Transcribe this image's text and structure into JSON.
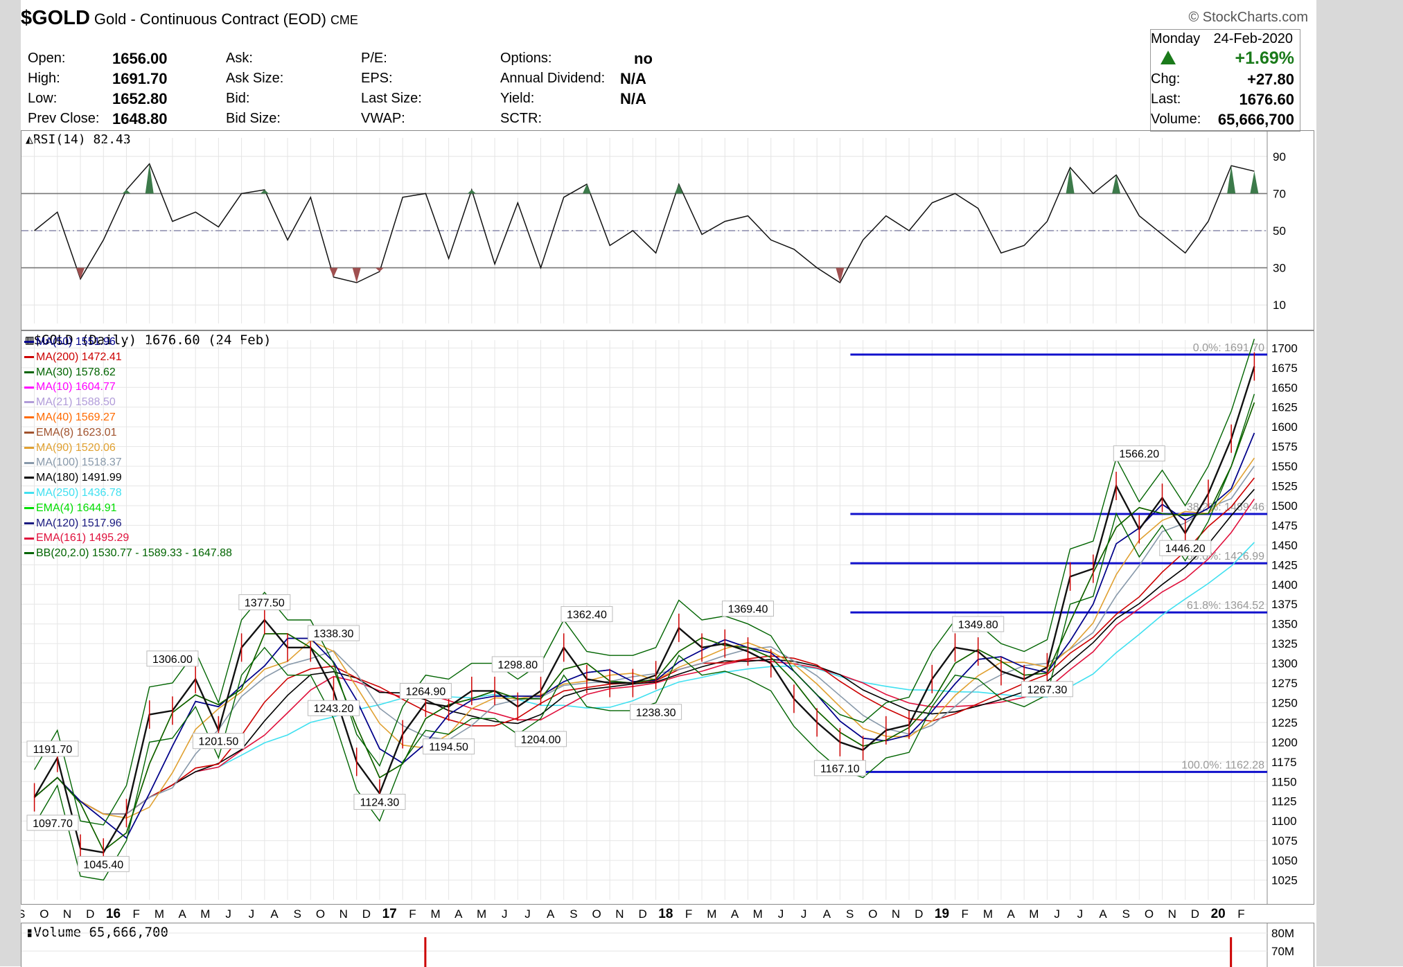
{
  "header": {
    "symbol": "$GOLD",
    "description": "Gold - Continuous Contract (EOD)",
    "exchange": "CME",
    "brand": "© StockCharts.com"
  },
  "quote": {
    "open_label": "Open:",
    "open": "1656.00",
    "high_label": "High:",
    "high": "1691.70",
    "low_label": "Low:",
    "low": "1652.80",
    "prev_close_label": "Prev Close:",
    "prev_close": "1648.80",
    "ask_label": "Ask:",
    "ask_size_label": "Ask Size:",
    "bid_label": "Bid:",
    "bid_size_label": "Bid Size:",
    "pe_label": "P/E:",
    "eps_label": "EPS:",
    "last_size_label": "Last Size:",
    "vwap_label": "VWAP:",
    "options_label": "Options:",
    "options": "no",
    "annual_dividend_label": "Annual Dividend:",
    "annual_dividend": "N/A",
    "yield_label": "Yield:",
    "yield": "N/A",
    "sctr_label": "SCTR:"
  },
  "summary": {
    "day": "Monday",
    "date": "24-Feb-2020",
    "pct_change": "+1.69%",
    "chg_label": "Chg:",
    "chg": "+27.80",
    "last_label": "Last:",
    "last": "1676.60",
    "volume_label": "Volume:",
    "volume": "65,666,700",
    "up_color": "#1a7a1a"
  },
  "chart_data": [
    {
      "type": "line",
      "title": "RSI(14) 82.43",
      "ylim": [
        0,
        100
      ],
      "yticks": [
        10,
        30,
        50,
        70,
        90
      ],
      "reference_lines": [
        30,
        50,
        70
      ],
      "points": [
        {
          "x": "2015-09",
          "y": 50
        },
        {
          "x": "2015-10",
          "y": 60
        },
        {
          "x": "2015-11",
          "y": 24
        },
        {
          "x": "2015-12",
          "y": 45
        },
        {
          "x": "2016-01",
          "y": 72
        },
        {
          "x": "2016-02",
          "y": 86
        },
        {
          "x": "2016-03",
          "y": 55
        },
        {
          "x": "2016-04",
          "y": 60
        },
        {
          "x": "2016-05",
          "y": 52
        },
        {
          "x": "2016-06",
          "y": 70
        },
        {
          "x": "2016-07",
          "y": 72
        },
        {
          "x": "2016-08",
          "y": 45
        },
        {
          "x": "2016-09",
          "y": 68
        },
        {
          "x": "2016-10",
          "y": 25
        },
        {
          "x": "2016-11",
          "y": 22
        },
        {
          "x": "2016-12",
          "y": 28
        },
        {
          "x": "2017-01",
          "y": 68
        },
        {
          "x": "2017-02",
          "y": 70
        },
        {
          "x": "2017-03",
          "y": 35
        },
        {
          "x": "2017-04",
          "y": 72
        },
        {
          "x": "2017-05",
          "y": 32
        },
        {
          "x": "2017-06",
          "y": 65
        },
        {
          "x": "2017-07",
          "y": 30
        },
        {
          "x": "2017-08",
          "y": 68
        },
        {
          "x": "2017-09",
          "y": 75
        },
        {
          "x": "2017-10",
          "y": 42
        },
        {
          "x": "2017-11",
          "y": 50
        },
        {
          "x": "2017-12",
          "y": 38
        },
        {
          "x": "2018-01",
          "y": 75
        },
        {
          "x": "2018-02",
          "y": 48
        },
        {
          "x": "2018-03",
          "y": 55
        },
        {
          "x": "2018-04",
          "y": 58
        },
        {
          "x": "2018-05",
          "y": 45
        },
        {
          "x": "2018-06",
          "y": 40
        },
        {
          "x": "2018-07",
          "y": 30
        },
        {
          "x": "2018-08",
          "y": 22
        },
        {
          "x": "2018-09",
          "y": 45
        },
        {
          "x": "2018-10",
          "y": 58
        },
        {
          "x": "2018-11",
          "y": 50
        },
        {
          "x": "2018-12",
          "y": 65
        },
        {
          "x": "2019-01",
          "y": 70
        },
        {
          "x": "2019-02",
          "y": 62
        },
        {
          "x": "2019-03",
          "y": 38
        },
        {
          "x": "2019-04",
          "y": 42
        },
        {
          "x": "2019-05",
          "y": 55
        },
        {
          "x": "2019-06",
          "y": 84
        },
        {
          "x": "2019-07",
          "y": 70
        },
        {
          "x": "2019-08",
          "y": 80
        },
        {
          "x": "2019-09",
          "y": 58
        },
        {
          "x": "2019-10",
          "y": 48
        },
        {
          "x": "2019-11",
          "y": 38
        },
        {
          "x": "2019-12",
          "y": 55
        },
        {
          "x": "2020-01",
          "y": 85
        },
        {
          "x": "2020-02",
          "y": 82
        }
      ]
    },
    {
      "type": "line",
      "title": "$GOLD (Daily) 1676.60 (24 Feb)",
      "ylim": [
        1000,
        1710
      ],
      "yticks": [
        1025,
        1050,
        1075,
        1100,
        1125,
        1150,
        1175,
        1200,
        1225,
        1250,
        1275,
        1300,
        1325,
        1350,
        1375,
        1400,
        1425,
        1450,
        1475,
        1500,
        1525,
        1550,
        1575,
        1600,
        1625,
        1650,
        1675,
        1700
      ],
      "x_ticks": [
        "S",
        "O",
        "N",
        "D",
        "16",
        "F",
        "M",
        "A",
        "M",
        "J",
        "J",
        "A",
        "S",
        "O",
        "N",
        "D",
        "17",
        "F",
        "M",
        "A",
        "M",
        "J",
        "J",
        "A",
        "S",
        "O",
        "N",
        "D",
        "18",
        "F",
        "M",
        "A",
        "M",
        "J",
        "J",
        "A",
        "S",
        "O",
        "N",
        "D",
        "19",
        "F",
        "M",
        "A",
        "M",
        "J",
        "J",
        "A",
        "S",
        "O",
        "N",
        "D",
        "20",
        "F"
      ],
      "price": [
        {
          "x": "2015-09",
          "y": 1130
        },
        {
          "x": "2015-10",
          "y": 1180
        },
        {
          "x": "2015-11",
          "y": 1065
        },
        {
          "x": "2015-12",
          "y": 1060
        },
        {
          "x": "2016-01",
          "y": 1110
        },
        {
          "x": "2016-02",
          "y": 1235
        },
        {
          "x": "2016-03",
          "y": 1240
        },
        {
          "x": "2016-04",
          "y": 1280
        },
        {
          "x": "2016-05",
          "y": 1215
        },
        {
          "x": "2016-06",
          "y": 1320
        },
        {
          "x": "2016-07",
          "y": 1355
        },
        {
          "x": "2016-08",
          "y": 1320
        },
        {
          "x": "2016-09",
          "y": 1320
        },
        {
          "x": "2016-10",
          "y": 1265
        },
        {
          "x": "2016-11",
          "y": 1175
        },
        {
          "x": "2016-12",
          "y": 1135
        },
        {
          "x": "2017-01",
          "y": 1210
        },
        {
          "x": "2017-02",
          "y": 1250
        },
        {
          "x": "2017-03",
          "y": 1245
        },
        {
          "x": "2017-04",
          "y": 1265
        },
        {
          "x": "2017-05",
          "y": 1265
        },
        {
          "x": "2017-06",
          "y": 1245
        },
        {
          "x": "2017-07",
          "y": 1265
        },
        {
          "x": "2017-08",
          "y": 1320
        },
        {
          "x": "2017-09",
          "y": 1280
        },
        {
          "x": "2017-10",
          "y": 1275
        },
        {
          "x": "2017-11",
          "y": 1275
        },
        {
          "x": "2017-12",
          "y": 1285
        },
        {
          "x": "2018-01",
          "y": 1345
        },
        {
          "x": "2018-02",
          "y": 1320
        },
        {
          "x": "2018-03",
          "y": 1325
        },
        {
          "x": "2018-04",
          "y": 1315
        },
        {
          "x": "2018-05",
          "y": 1300
        },
        {
          "x": "2018-06",
          "y": 1255
        },
        {
          "x": "2018-07",
          "y": 1225
        },
        {
          "x": "2018-08",
          "y": 1200
        },
        {
          "x": "2018-09",
          "y": 1190
        },
        {
          "x": "2018-10",
          "y": 1215
        },
        {
          "x": "2018-11",
          "y": 1222
        },
        {
          "x": "2018-12",
          "y": 1280
        },
        {
          "x": "2019-01",
          "y": 1320
        },
        {
          "x": "2019-02",
          "y": 1315
        },
        {
          "x": "2019-03",
          "y": 1290
        },
        {
          "x": "2019-04",
          "y": 1280
        },
        {
          "x": "2019-05",
          "y": 1295
        },
        {
          "x": "2019-06",
          "y": 1410
        },
        {
          "x": "2019-07",
          "y": 1420
        },
        {
          "x": "2019-08",
          "y": 1525
        },
        {
          "x": "2019-09",
          "y": 1470
        },
        {
          "x": "2019-10",
          "y": 1510
        },
        {
          "x": "2019-11",
          "y": 1465
        },
        {
          "x": "2019-12",
          "y": 1515
        },
        {
          "x": "2020-01",
          "y": 1585
        },
        {
          "x": "2020-02",
          "y": 1676.6
        }
      ],
      "price_labels": [
        {
          "x": "2015-09",
          "y": 1191.7,
          "label": "1191.70"
        },
        {
          "x": "2015-08",
          "y": 1097.7,
          "label": "1097.70"
        },
        {
          "x": "2015-12",
          "y": 1045.4,
          "label": "1045.40"
        },
        {
          "x": "2016-03",
          "y": 1306.0,
          "label": "1306.00"
        },
        {
          "x": "2016-05",
          "y": 1201.5,
          "label": "1201.50"
        },
        {
          "x": "2016-07",
          "y": 1377.5,
          "label": "1377.50"
        },
        {
          "x": "2016-10",
          "y": 1338.3,
          "label": "1338.30"
        },
        {
          "x": "2016-10",
          "y": 1243.2,
          "label": "1243.20"
        },
        {
          "x": "2016-12",
          "y": 1124.3,
          "label": "1124.30"
        },
        {
          "x": "2017-02",
          "y": 1264.9,
          "label": "1264.90"
        },
        {
          "x": "2017-03",
          "y": 1194.5,
          "label": "1194.50"
        },
        {
          "x": "2017-06",
          "y": 1298.8,
          "label": "1298.80"
        },
        {
          "x": "2017-07",
          "y": 1204.0,
          "label": "1204.00"
        },
        {
          "x": "2017-09",
          "y": 1362.4,
          "label": "1362.40"
        },
        {
          "x": "2017-12",
          "y": 1238.3,
          "label": "1238.30"
        },
        {
          "x": "2018-04",
          "y": 1369.4,
          "label": "1369.40"
        },
        {
          "x": "2018-08",
          "y": 1167.1,
          "label": "1167.10"
        },
        {
          "x": "2019-02",
          "y": 1349.8,
          "label": "1349.80"
        },
        {
          "x": "2019-05",
          "y": 1267.3,
          "label": "1267.30"
        },
        {
          "x": "2019-09",
          "y": 1566.2,
          "label": "1566.20"
        },
        {
          "x": "2019-11",
          "y": 1446.2,
          "label": "1446.20"
        }
      ],
      "fibonacci": [
        {
          "y": 1691.7,
          "label": "0.0%: 1691.70"
        },
        {
          "y": 1489.46,
          "label": "38.2%: 1489.46"
        },
        {
          "y": 1426.99,
          "label": "50.0%: 1426.99"
        },
        {
          "y": 1364.52,
          "label": "61.8%: 1364.52"
        },
        {
          "y": 1162.28,
          "label": "100.0%: 1162.28"
        }
      ],
      "overlays": [
        {
          "name": "MA(50)",
          "value": "1551.96",
          "color": "#00008b"
        },
        {
          "name": "MA(200)",
          "value": "1472.41",
          "color": "#cc0000"
        },
        {
          "name": "MA(30)",
          "value": "1578.62",
          "color": "#006400"
        },
        {
          "name": "MA(10)",
          "value": "1604.77",
          "color": "#ff00ff"
        },
        {
          "name": "MA(21)",
          "value": "1588.50",
          "color": "#b19cd9"
        },
        {
          "name": "MA(40)",
          "value": "1569.27",
          "color": "#ff6a00"
        },
        {
          "name": "EMA(8)",
          "value": "1623.01",
          "color": "#a0522d"
        },
        {
          "name": "MA(90)",
          "value": "1520.06",
          "color": "#e0a030"
        },
        {
          "name": "MA(100)",
          "value": "1518.37",
          "color": "#8899aa"
        },
        {
          "name": "MA(180)",
          "value": "1491.99",
          "color": "#000000"
        },
        {
          "name": "MA(250)",
          "value": "1436.78",
          "color": "#40e0f0"
        },
        {
          "name": "EMA(4)",
          "value": "1644.91",
          "color": "#00dd00"
        },
        {
          "name": "MA(120)",
          "value": "1517.96",
          "color": "#1a1a80"
        },
        {
          "name": "EMA(161)",
          "value": "1495.29",
          "color": "#e0103c"
        },
        {
          "name": "BB(20,2.0)",
          "value": "1530.77 - 1589.33 - 1647.88",
          "color": "#006400"
        }
      ]
    },
    {
      "type": "bar",
      "title": "Volume 65,666,700",
      "yticks": [
        "80M",
        "70M"
      ]
    }
  ]
}
